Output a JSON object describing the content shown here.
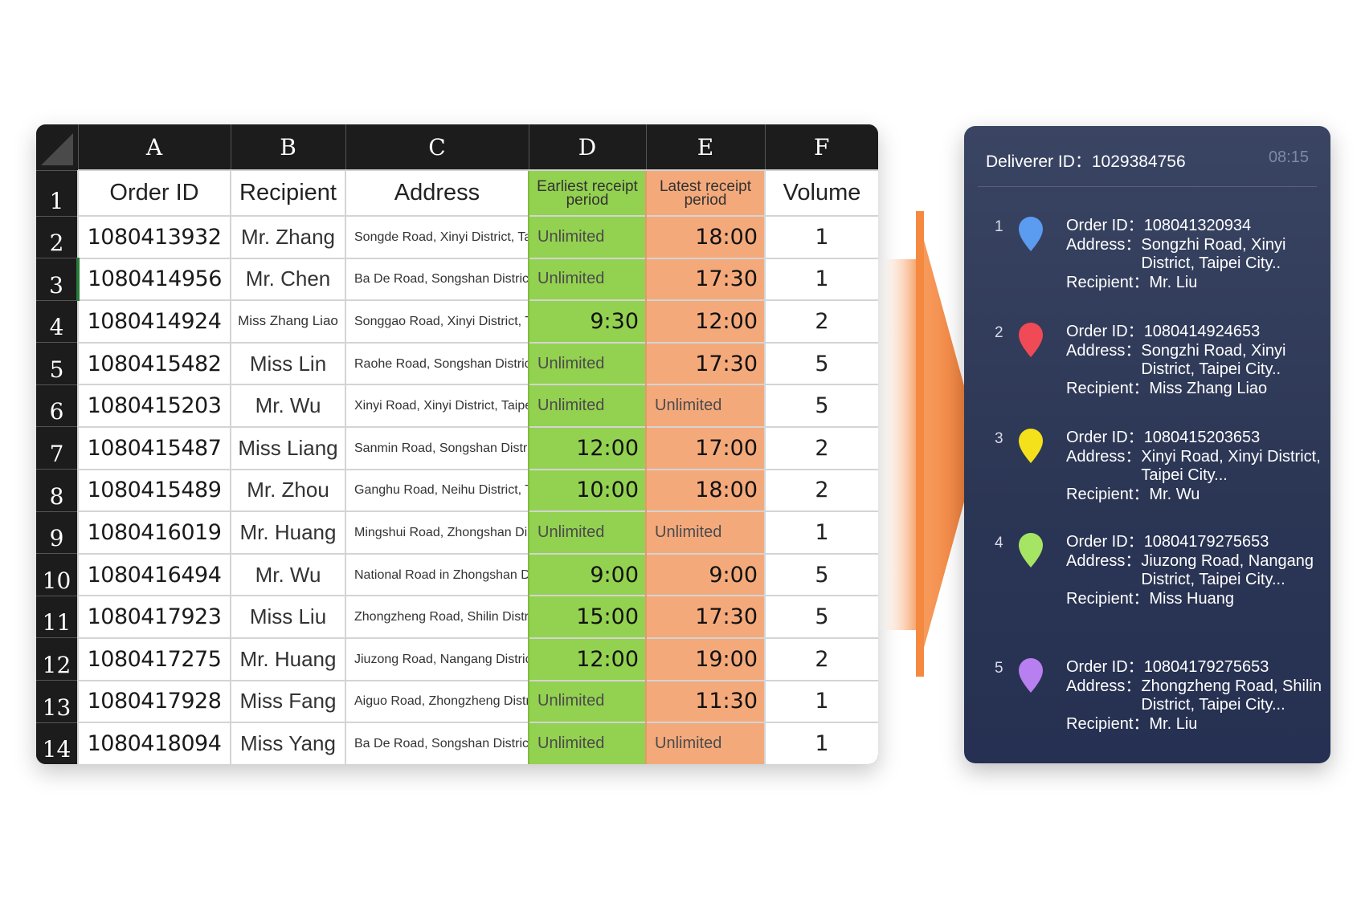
{
  "sheet": {
    "columns": [
      "A",
      "B",
      "C",
      "D",
      "E",
      "F"
    ],
    "header_row_num": "1",
    "headers": {
      "order_id": "Order ID",
      "recipient": "Recipient",
      "address": "Address",
      "earliest": "Earliest receipt period",
      "latest": "Latest receipt period",
      "volume": "Volume"
    },
    "rows": [
      {
        "num": "2",
        "order_id": "1080413932",
        "recipient": "Mr. Zhang",
        "address": "Songde Road, Xinyi District, Taipei City...",
        "earliest": "Unlimited",
        "latest": "18:00",
        "volume": "1"
      },
      {
        "num": "3",
        "order_id": "1080414956",
        "recipient": "Mr. Chen",
        "address": "Ba De Road, Songshan District, Taipei City...",
        "earliest": "Unlimited",
        "latest": "17:30",
        "volume": "1"
      },
      {
        "num": "4",
        "order_id": "1080414924",
        "recipient": "Miss Zhang Liao",
        "address": "Songgao Road, Xinyi District, Taipei City...",
        "earliest": "9:30",
        "latest": "12:00",
        "volume": "2"
      },
      {
        "num": "5",
        "order_id": "1080415482",
        "recipient": "Miss Lin",
        "address": "Raohe Road, Songshan District, Taipei City...",
        "earliest": "Unlimited",
        "latest": "17:30",
        "volume": "5"
      },
      {
        "num": "6",
        "order_id": "1080415203",
        "recipient": "Mr. Wu",
        "address": "Xinyi Road, Xinyi District, Taipei City...",
        "earliest": "Unlimited",
        "latest": "Unlimited",
        "volume": "5"
      },
      {
        "num": "7",
        "order_id": "1080415487",
        "recipient": "Miss Liang",
        "address": "Sanmin Road, Songshan District, Taipei City...",
        "earliest": "12:00",
        "latest": "17:00",
        "volume": "2"
      },
      {
        "num": "8",
        "order_id": "1080415489",
        "recipient": "Mr. Zhou",
        "address": "Ganghu Road, Neihu District, Taipei City...",
        "earliest": "10:00",
        "latest": "18:00",
        "volume": "2"
      },
      {
        "num": "9",
        "order_id": "1080416019",
        "recipient": "Mr. Huang",
        "address": "Mingshui Road, Zhongshan District, Taipei City...",
        "earliest": "Unlimited",
        "latest": "Unlimited",
        "volume": "1"
      },
      {
        "num": "10",
        "order_id": "1080416494",
        "recipient": "Mr. Wu",
        "address": "National Road in Zhongshan District, Taipei City...",
        "earliest": "9:00",
        "latest": "9:00",
        "volume": "5"
      },
      {
        "num": "11",
        "order_id": "1080417923",
        "recipient": "Miss Liu",
        "address": "Zhongzheng Road, Shilin District, Taipei City...",
        "earliest": "15:00",
        "latest": "17:30",
        "volume": "5"
      },
      {
        "num": "12",
        "order_id": "1080417275",
        "recipient": "Mr. Huang",
        "address": "Jiuzong Road, Nangang District, Taipei City...",
        "earliest": "12:00",
        "latest": "19:00",
        "volume": "2"
      },
      {
        "num": "13",
        "order_id": "1080417928",
        "recipient": "Miss Fang",
        "address": "Aiguo Road, Zhongzheng District, Taipei City...",
        "earliest": "Unlimited",
        "latest": "11:30",
        "volume": "1"
      },
      {
        "num": "14",
        "order_id": "1080418094",
        "recipient": "Miss Yang",
        "address": "Ba De Road, Songshan District, Taipei City...",
        "earliest": "Unlimited",
        "latest": "Unlimited",
        "volume": "1"
      }
    ]
  },
  "panel": {
    "deliverer_label": "Deliverer ID：1029384756",
    "time": "08:15",
    "order_label": "Order ID：",
    "address_label": "Address：",
    "recipient_label": "Recipient：",
    "orders": [
      {
        "index": "1",
        "pin_color": "#5b9bf0",
        "order_id": "108041320934",
        "address": "Songzhi Road, Xinyi District, Taipei City..",
        "recipient": "Mr. Liu"
      },
      {
        "index": "2",
        "pin_color": "#ef4a55",
        "order_id": "1080414924653",
        "address": "Songzhi Road, Xinyi District, Taipei City..",
        "recipient": "Miss Zhang Liao"
      },
      {
        "index": "3",
        "pin_color": "#f5e11b",
        "order_id": "1080415203653",
        "address": "Xinyi Road, Xinyi District, Taipei City...",
        "recipient": "Mr. Wu"
      },
      {
        "index": "4",
        "pin_color": "#a6e464",
        "order_id": "10804179275653",
        "address": "Jiuzong Road, Nangang District, Taipei City...",
        "recipient": "Miss Huang"
      },
      {
        "index": "5",
        "pin_color": "#b77ff0",
        "order_id": "10804179275653",
        "address": "Zhongzheng Road, Shilin District, Taipei City...",
        "recipient": "Mr. Liu"
      }
    ]
  },
  "colors": {
    "earliest_col": "#93d150",
    "latest_col": "#f4a97b",
    "arrow": "#f58a45",
    "panel_bg": "#2f3a5a"
  }
}
